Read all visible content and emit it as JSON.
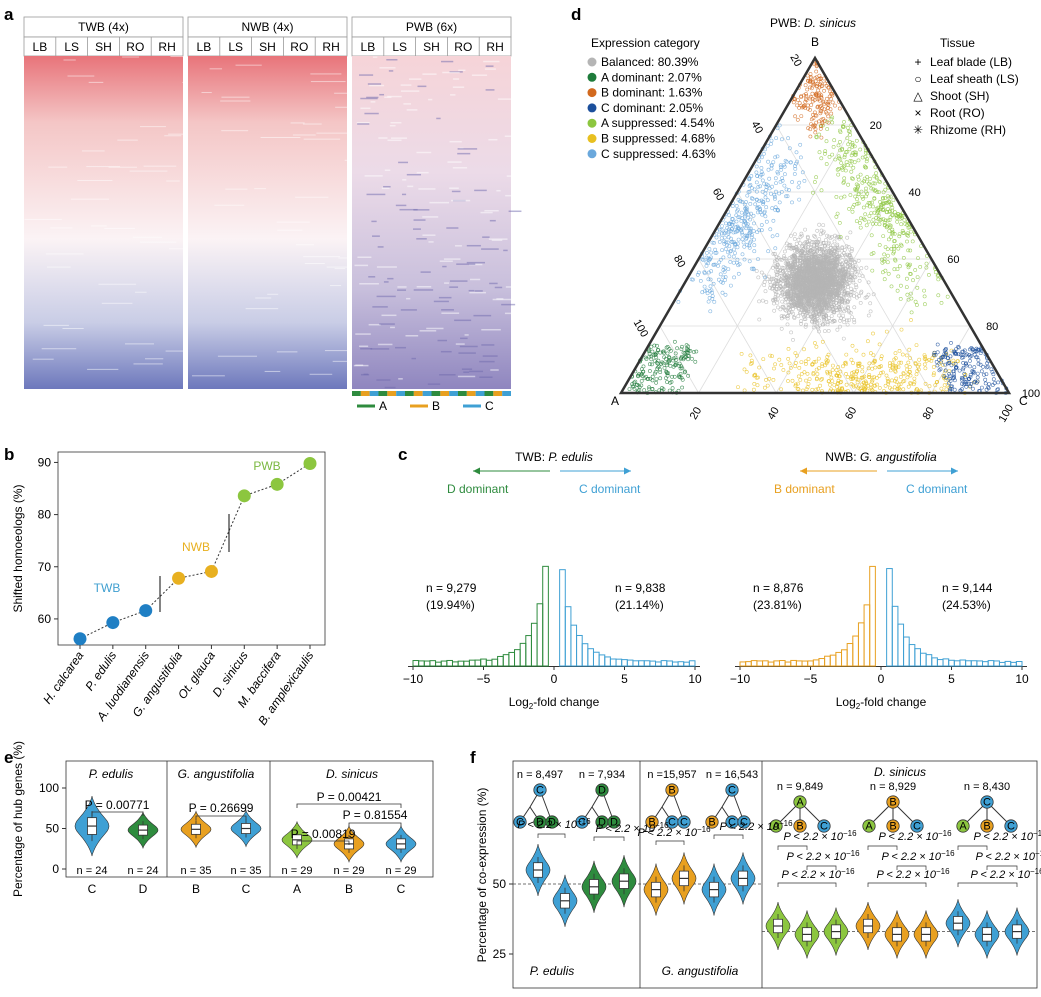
{
  "panels": {
    "a": "a",
    "b": "b",
    "c": "c",
    "d": "d",
    "e": "e",
    "f": "f"
  },
  "colors": {
    "A": "#2e8b3e",
    "B": "#e8a020",
    "C": "#3fa0d4",
    "Aup": "#8cc63f",
    "blue": "#1f78b4",
    "grey": "#b5b5b5",
    "Bdom": "#d2691e",
    "Cdom": "#1b4f9c"
  },
  "panel_a": {
    "groups": [
      {
        "title": "TWB (4x)"
      },
      {
        "title": "NWB (4x)"
      },
      {
        "title": "PWB (6x)"
      }
    ],
    "tissues": [
      "LB",
      "LS",
      "SH",
      "RO",
      "RH"
    ],
    "legend": [
      {
        "label": "A",
        "color": "#2e8b3e"
      },
      {
        "label": "B",
        "color": "#e8a020"
      },
      {
        "label": "C",
        "color": "#3fa0d4"
      }
    ]
  },
  "panel_d": {
    "title": "PWB: D. sinicus",
    "vertices": {
      "A": "A",
      "B": "B",
      "C": "C"
    },
    "ticks": [
      "20",
      "40",
      "60",
      "80",
      "100"
    ],
    "category_title": "Expression category",
    "categories": [
      {
        "label": "Balanced: 80.39%",
        "color": "#b5b5b5"
      },
      {
        "label": "A dominant: 2.07%",
        "color": "#1e7b3a"
      },
      {
        "label": "B dominant: 1.63%",
        "color": "#d2691e"
      },
      {
        "label": "C dominant: 2.05%",
        "color": "#1b4f9c"
      },
      {
        "label": "A suppressed: 4.54%",
        "color": "#8cc63f"
      },
      {
        "label": "B suppressed: 4.68%",
        "color": "#e8c020"
      },
      {
        "label": "C suppressed: 4.63%",
        "color": "#6aa8dc"
      }
    ],
    "tissue_title": "Tissue",
    "tissues": [
      {
        "symbol": "+",
        "label": "Leaf blade (LB)"
      },
      {
        "symbol": "○",
        "label": "Leaf sheath (LS)"
      },
      {
        "symbol": "△",
        "label": "Shoot (SH)"
      },
      {
        "symbol": "×",
        "label": "Root (RO)"
      },
      {
        "symbol": "✳",
        "label": "Rhizome (RH)"
      }
    ]
  },
  "chart_data": [
    {
      "panel": "b",
      "type": "scatter",
      "ylabel": "Shifted homoeologs (%)",
      "ylim": [
        55,
        92
      ],
      "yticks": [
        "60",
        "70",
        "80",
        "90"
      ],
      "categories": [
        "H. calcarea",
        "P. edulis",
        "A. luodianensis",
        "G. angustifolia",
        "Ot. glauca",
        "D. sinicus",
        "M. baccifera",
        "B. amplexicaulis"
      ],
      "values": [
        56.2,
        59.3,
        61.6,
        67.8,
        69.1,
        83.6,
        85.8,
        89.8
      ],
      "point_colors": [
        "#1f7fc4",
        "#1f7fc4",
        "#1f7fc4",
        "#e8b020",
        "#e8b020",
        "#8cc63f",
        "#8cc63f",
        "#8cc63f"
      ],
      "group_labels": [
        {
          "label": "TWB",
          "color": "#3f9fd0"
        },
        {
          "label": "NWB",
          "color": "#e8b020"
        },
        {
          "label": "PWB",
          "color": "#7ab840"
        }
      ]
    },
    {
      "panel": "c",
      "type": "bar",
      "title_prefix": "TWB: ",
      "title_species": "P. edulis",
      "left_label": "D dominant",
      "right_label": "C dominant",
      "left_color": "#2e8b3e",
      "right_color": "#3fa0d4",
      "left_n": "n = 9,279",
      "left_pct": "(19.94%)",
      "right_n": "n = 9,838",
      "right_pct": "(21.14%)",
      "xlabel": "Log2-fold change",
      "xticks": [
        "-10",
        "-5",
        "0",
        "5",
        "10"
      ],
      "xlim": [
        -10,
        10
      ]
    },
    {
      "panel": "c",
      "type": "bar",
      "title_prefix": "NWB: ",
      "title_species": "G. angustifolia",
      "left_label": "B dominant",
      "right_label": "C dominant",
      "left_color": "#e8a020",
      "right_color": "#3fa0d4",
      "left_n": "n = 8,876",
      "left_pct": "(23.81%)",
      "right_n": "n = 9,144",
      "right_pct": "(24.53%)",
      "xlabel": "Log2-fold change",
      "xticks": [
        "-10",
        "-5",
        "0",
        "5",
        "10"
      ],
      "xlim": [
        -10,
        10
      ]
    },
    {
      "panel": "e",
      "type": "violin",
      "ylabel": "Percentage of hub genes (%)",
      "ylim": [
        0,
        100
      ],
      "yticks": [
        "0",
        "50",
        "100"
      ],
      "groups": [
        {
          "species": "P. edulis",
          "violins": [
            {
              "label": "C",
              "n": "n = 24",
              "median": 53,
              "color": "#3fa0d4"
            },
            {
              "label": "D",
              "n": "n = 24",
              "median": 48,
              "color": "#2e8b3e"
            }
          ],
          "pvals": [
            "P = 0.00771"
          ]
        },
        {
          "species": "G. angustifolia",
          "violins": [
            {
              "label": "B",
              "n": "n = 35",
              "median": 49,
              "color": "#e8a020"
            },
            {
              "label": "C",
              "n": "n = 35",
              "median": 50,
              "color": "#3fa0d4"
            }
          ],
          "pvals": [
            "P = 0.26699"
          ]
        },
        {
          "species": "D. sinicus",
          "violins": [
            {
              "label": "A",
              "n": "n = 29",
              "median": 36,
              "color": "#8cc63f"
            },
            {
              "label": "B",
              "n": "n = 29",
              "median": 31,
              "color": "#e8a020"
            },
            {
              "label": "C",
              "n": "n = 29",
              "median": 31,
              "color": "#3fa0d4"
            }
          ],
          "pvals": [
            "P = 0.00421",
            "P = 0.81554",
            "P = 0.00819"
          ]
        }
      ]
    },
    {
      "panel": "f",
      "type": "violin",
      "ylabel": "Percentage of co-expression (%)",
      "yticks": [
        "25",
        "50"
      ],
      "species": [
        "P. edulis",
        "G. angustifolia",
        "D. sinicus"
      ],
      "n_labels": [
        "n = 8,497",
        "n = 7,934",
        "n =15,957",
        "n = 16,543",
        "n = 9,849",
        "n = 8,929",
        "n = 8,430"
      ],
      "p_label_prefix": "P < 2.2 × 10",
      "p_label_exp": "−16",
      "tree_tips": [
        [
          "C",
          "C",
          "D"
        ],
        [
          "D",
          "C",
          "D"
        ],
        [
          "B",
          "B",
          "C"
        ],
        [
          "C",
          "B",
          "C"
        ],
        [
          "A",
          "A",
          "B",
          "C"
        ],
        [
          "B",
          "A",
          "B",
          "C"
        ],
        [
          "C",
          "A",
          "B",
          "C"
        ]
      ],
      "violins": [
        {
          "color": "#3fa0d4",
          "median": 55
        },
        {
          "color": "#3fa0d4",
          "median": 44
        },
        {
          "color": "#2e8b3e",
          "median": 49
        },
        {
          "color": "#2e8b3e",
          "median": 51
        },
        {
          "color": "#e8a020",
          "median": 48
        },
        {
          "color": "#e8a020",
          "median": 52
        },
        {
          "color": "#3fa0d4",
          "median": 48
        },
        {
          "color": "#3fa0d4",
          "median": 52
        },
        {
          "color": "#8cc63f",
          "median": 35
        },
        {
          "color": "#8cc63f",
          "median": 32
        },
        {
          "color": "#8cc63f",
          "median": 33
        },
        {
          "color": "#e8a020",
          "median": 35
        },
        {
          "color": "#e8a020",
          "median": 32
        },
        {
          "color": "#e8a020",
          "median": 32
        },
        {
          "color": "#3fa0d4",
          "median": 36
        },
        {
          "color": "#3fa0d4",
          "median": 32
        },
        {
          "color": "#3fa0d4",
          "median": 33
        }
      ]
    }
  ]
}
